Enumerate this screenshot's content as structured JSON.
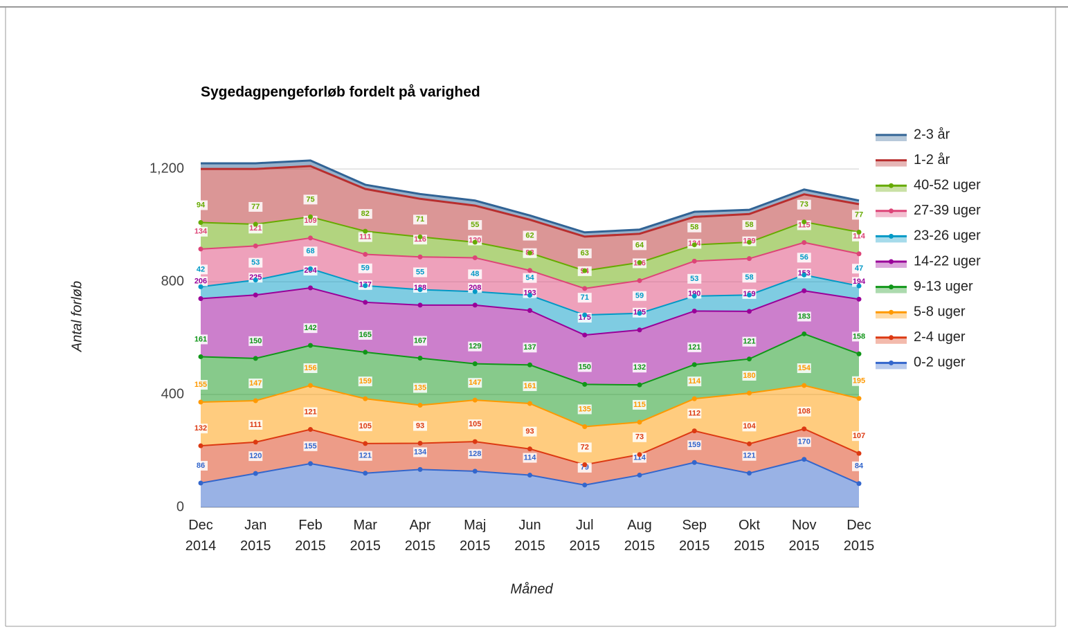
{
  "chart_data": {
    "type": "stacked_area",
    "title": "Sygedagpengeforløb fordelt på varighed",
    "x_label": "Måned",
    "y_label": "Antal forløb",
    "categories": [
      "Dec 2014",
      "Jan 2015",
      "Feb 2015",
      "Mar 2015",
      "Apr 2015",
      "Maj 2015",
      "Jun 2015",
      "Jul 2015",
      "Aug 2015",
      "Sep 2015",
      "Okt 2015",
      "Nov 2015",
      "Dec 2015"
    ],
    "ylim": [
      0,
      1350
    ],
    "yticks": [
      0,
      400,
      800,
      {
        "value": 1200,
        "label": "1,200"
      }
    ],
    "grid": true,
    "legend": "right",
    "series": [
      {
        "name": "0-2 uger",
        "color": "#3366cc",
        "show_points": true,
        "values": [
          86,
          120,
          155,
          121,
          134,
          128,
          114,
          79,
          114,
          159,
          121,
          170,
          84
        ]
      },
      {
        "name": "2-4 uger",
        "color": "#dc3912",
        "show_points": true,
        "values": [
          132,
          111,
          121,
          105,
          93,
          105,
          93,
          72,
          73,
          112,
          104,
          108,
          107
        ]
      },
      {
        "name": "5-8 uger",
        "color": "#ff9900",
        "show_points": true,
        "values": [
          155,
          147,
          156,
          159,
          135,
          147,
          161,
          135,
          115,
          114,
          180,
          154,
          195
        ]
      },
      {
        "name": "9-13 uger",
        "color": "#109618",
        "show_points": true,
        "values": [
          161,
          150,
          142,
          165,
          167,
          129,
          137,
          150,
          132,
          121,
          121,
          183,
          158
        ]
      },
      {
        "name": "14-22 uger",
        "color": "#990099",
        "show_points": true,
        "values": [
          206,
          225,
          204,
          177,
          188,
          208,
          193,
          175,
          195,
          190,
          169,
          153,
          194
        ]
      },
      {
        "name": "23-26 uger",
        "color": "#0099c6",
        "show_points": true,
        "values": [
          42,
          53,
          68,
          59,
          55,
          48,
          54,
          71,
          59,
          53,
          58,
          56,
          47
        ]
      },
      {
        "name": "27-39 uger",
        "color": "#dd4477",
        "show_points": true,
        "values": [
          134,
          121,
          109,
          111,
          116,
          120,
          88,
          94,
          116,
          124,
          129,
          115,
          114
        ]
      },
      {
        "name": "40-52 uger",
        "color": "#66aa00",
        "show_points": true,
        "values": [
          94,
          77,
          75,
          82,
          71,
          55,
          62,
          63,
          64,
          58,
          58,
          73,
          77
        ]
      },
      {
        "name": "1-2 år",
        "color": "#b82e2e",
        "show_points": false,
        "values": [
          190,
          196,
          180,
          150,
          135,
          130,
          118,
          121,
          102,
          99,
          100,
          98,
          99
        ]
      },
      {
        "name": "2-3 år",
        "color": "#316395",
        "show_points": false,
        "values": [
          20,
          20,
          20,
          15,
          17,
          18,
          15,
          15,
          15,
          18,
          15,
          17,
          13
        ]
      }
    ]
  }
}
